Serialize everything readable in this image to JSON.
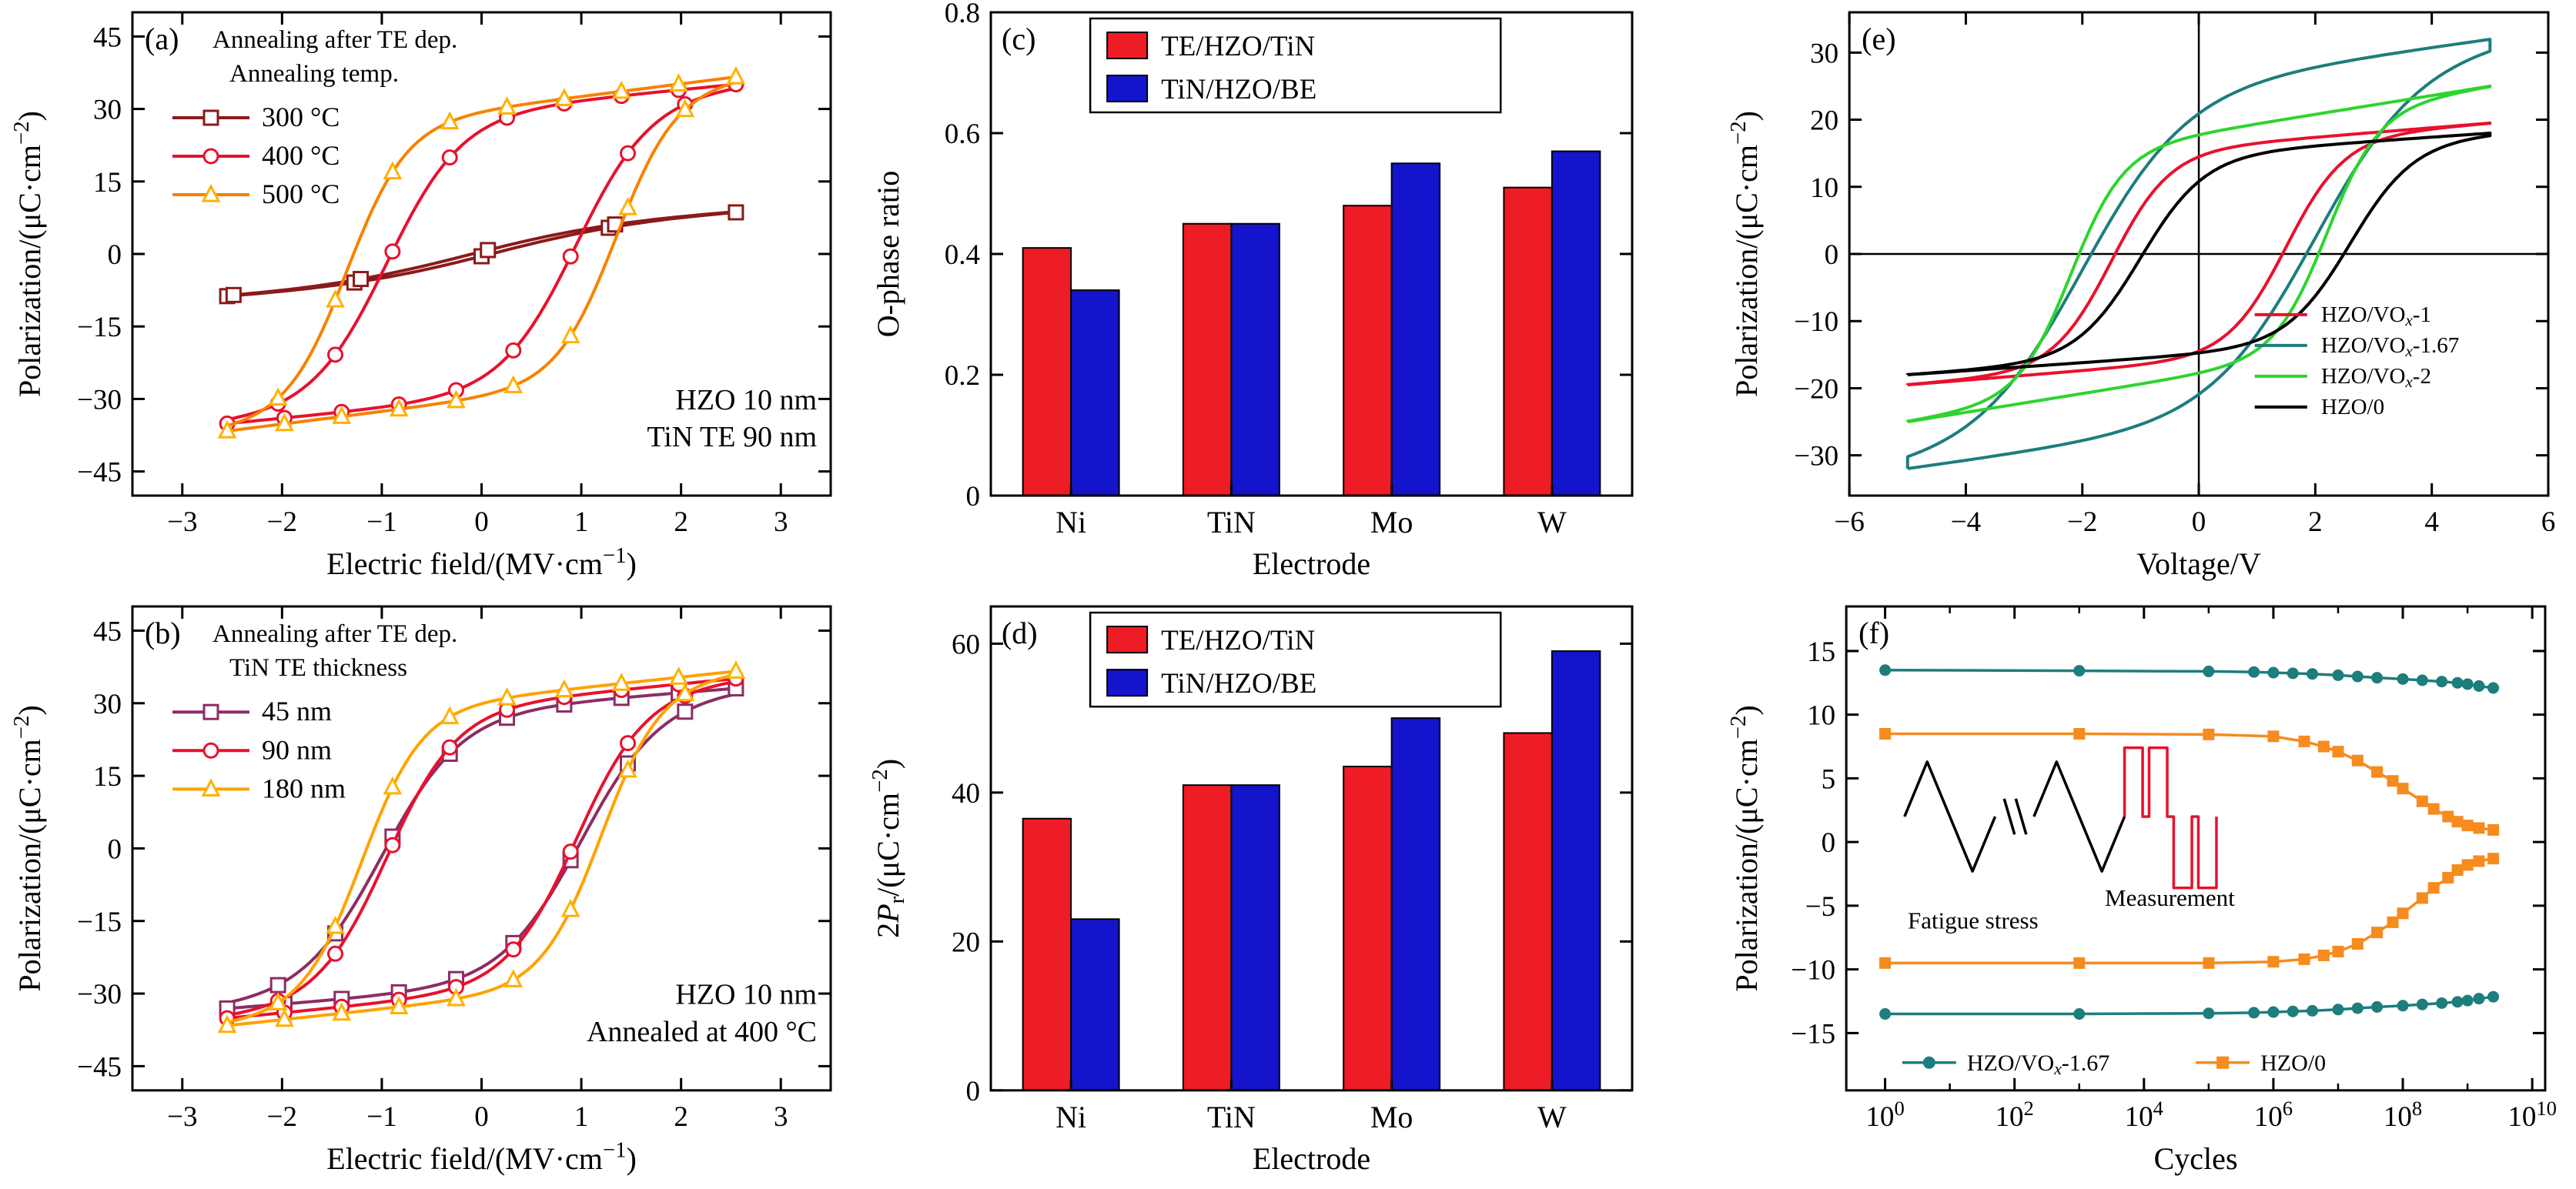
{
  "figure": {
    "background": "#ffffff",
    "panel_labels": [
      "(a)",
      "(b)",
      "(c)",
      "(d)",
      "(e)",
      "(f)"
    ]
  },
  "chart_data": [
    {
      "id": "a",
      "panel_label": "(a)",
      "type": "line",
      "subtype": "hysteresis",
      "xlabel": "Electric field/(MV·cm^{−1})",
      "ylabel": "Polarization/(μC·cm^{−2})",
      "xlim": [
        -3.5,
        3.5
      ],
      "ylim": [
        -50,
        50
      ],
      "xticks": [
        -3,
        -2,
        -1,
        0,
        1,
        2,
        3
      ],
      "yticks": [
        -45,
        -30,
        -15,
        0,
        15,
        30,
        45
      ],
      "legend_header": [
        "Annealing after TE dep.",
        "Annealing temp."
      ],
      "annotations": [
        "HZO 10 nm",
        "TiN TE 90 nm"
      ],
      "series": [
        {
          "name": "300 °C",
          "color": "#8b1a1a",
          "marker": "square",
          "marker_every": 20,
          "loop": {
            "Ps": 6,
            "w": 1.5,
            "Ec": 0.12,
            "k": 1.2,
            "Emax": 2.55
          }
        },
        {
          "name": "400 °C",
          "color": "#e8112d",
          "marker": "circle",
          "marker_every": 9,
          "loop": {
            "Ps": 30,
            "w": 0.75,
            "Ec": 0.95,
            "k": 2.0,
            "Emax": 2.55
          }
        },
        {
          "name": "500 °C",
          "color": "#f78200",
          "marker": "triangle",
          "marker_color": "#ffb100",
          "marker_every": 9,
          "loop": {
            "Ps": 30,
            "w": 0.6,
            "Ec": 1.35,
            "k": 2.6,
            "Emax": 2.55
          }
        }
      ]
    },
    {
      "id": "b",
      "panel_label": "(b)",
      "type": "line",
      "subtype": "hysteresis",
      "xlabel": "Electric field/(MV·cm^{−1})",
      "ylabel": "Polarization/(μC·cm^{−2})",
      "xlim": [
        -3.5,
        3.5
      ],
      "ylim": [
        -50,
        50
      ],
      "xticks": [
        -3,
        -2,
        -1,
        0,
        1,
        2,
        3
      ],
      "yticks": [
        -45,
        -30,
        -15,
        0,
        15,
        30,
        45
      ],
      "legend_header": [
        "Annealing after TE dep.",
        "TiN TE thickness"
      ],
      "annotations": [
        "HZO 10 nm",
        "Annealed at 400 °C"
      ],
      "series": [
        {
          "name": "45 nm",
          "color": "#8c2d64",
          "marker": "square",
          "marker_every": 9,
          "loop": {
            "Ps": 29,
            "w": 0.8,
            "Ec": 1.0,
            "k": 1.6,
            "Emax": 2.55
          }
        },
        {
          "name": "90 nm",
          "color": "#e8112d",
          "marker": "circle",
          "marker_every": 9,
          "loop": {
            "Ps": 30,
            "w": 0.7,
            "Ec": 0.95,
            "k": 2.0,
            "Emax": 2.55
          }
        },
        {
          "name": "180 nm",
          "color": "#ffa200",
          "marker": "triangle",
          "marker_color": "#ffb100",
          "marker_every": 9,
          "loop": {
            "Ps": 31,
            "w": 0.6,
            "Ec": 1.2,
            "k": 2.2,
            "Emax": 2.55
          }
        }
      ]
    },
    {
      "id": "c",
      "panel_label": "(c)",
      "type": "bar",
      "xlabel": "Electrode",
      "ylabel": "O-phase ratio",
      "categories": [
        "Ni",
        "TiN",
        "Mo",
        "W"
      ],
      "ylim": [
        0,
        0.8
      ],
      "yticks": [
        0,
        0.2,
        0.4,
        0.6,
        0.8
      ],
      "series": [
        {
          "name": "TE/HZO/TiN",
          "color": "#ee1c25",
          "values": [
            0.41,
            0.45,
            0.48,
            0.51
          ]
        },
        {
          "name": "TiN/HZO/BE",
          "color": "#1414cc",
          "values": [
            0.34,
            0.45,
            0.55,
            0.57
          ]
        }
      ]
    },
    {
      "id": "d",
      "panel_label": "(d)",
      "type": "bar",
      "xlabel": "Electrode",
      "ylabel": "2*P*_{r}/(μC·cm^{−2})",
      "categories": [
        "Ni",
        "TiN",
        "Mo",
        "W"
      ],
      "ylim": [
        0,
        65
      ],
      "yticks": [
        0,
        20,
        40,
        60
      ],
      "series": [
        {
          "name": "TE/HZO/TiN",
          "color": "#ee1c25",
          "values": [
            36.5,
            41,
            43.5,
            48
          ]
        },
        {
          "name": "TiN/HZO/BE",
          "color": "#1414cc",
          "values": [
            23,
            41,
            50,
            59
          ]
        }
      ]
    },
    {
      "id": "e",
      "panel_label": "(e)",
      "type": "line",
      "subtype": "hysteresis",
      "zero_lines": true,
      "xlabel": "Voltage/V",
      "ylabel": "Polarization/(μC·cm^{−2})",
      "xlim": [
        -6,
        6
      ],
      "ylim": [
        -36,
        36
      ],
      "xticks": [
        -6,
        -4,
        -2,
        0,
        2,
        4,
        6
      ],
      "yticks": [
        -30,
        -20,
        -10,
        0,
        10,
        20,
        30
      ],
      "series": [
        {
          "name": "HZO/VO_{*x*}-1",
          "color": "#e8112d",
          "loop": {
            "Ps": 16,
            "w": 1.0,
            "Ec": 1.5,
            "k": 0.7,
            "Emax": 5
          }
        },
        {
          "name": "HZO/VO_{*x*}-1.67",
          "color": "#1e7d7d",
          "loop": {
            "Ps": 26,
            "w": 1.8,
            "Ec": 2.0,
            "k": 1.2,
            "Emax": 5
          }
        },
        {
          "name": "HZO/VO_{*x*}-2",
          "color": "#2dd42d",
          "loop": {
            "Ps": 18,
            "w": 0.9,
            "Ec": 2.2,
            "k": 1.4,
            "Emax": 5
          }
        },
        {
          "name": "HZO/0",
          "color": "#000000",
          "loop": {
            "Ps": 15,
            "w": 1.1,
            "Ecn": 1.0,
            "Ecp": 2.6,
            "k": 0.6,
            "Emax": 5
          }
        }
      ]
    },
    {
      "id": "f",
      "panel_label": "(f)",
      "type": "fatigue",
      "xlabel": "Cycles",
      "ylabel": "Polarization/(μC·cm^{−2})",
      "xlog": true,
      "xlim_exp": [
        -0.6,
        10.2
      ],
      "xticks_exp": [
        0,
        2,
        4,
        6,
        8,
        10
      ],
      "xtick_labels": [
        "10^{0}",
        "10^{2}",
        "10^{4}",
        "10^{6}",
        "10^{8}",
        "10^{10}"
      ],
      "ylim": [
        -19.5,
        18.5
      ],
      "yticks": [
        -15,
        -10,
        -5,
        0,
        5,
        10,
        15
      ],
      "inset": {
        "fatigue_label": "Fatigue stress",
        "measurement_label": "Measurement",
        "fatigue_color": "#000000",
        "measurement_color": "#e8112d"
      },
      "series": [
        {
          "name": "HZO/VO_{*x*}-1.67",
          "color": "#1e7d7d",
          "marker": "circle",
          "branches": [
            {
              "x": [
                1,
                1000,
                100000,
                500000,
                1000000,
                2000000,
                4000000,
                10000000,
                20000000,
                40000000,
                100000000,
                200000000,
                400000000,
                700000000,
                1000000000,
                1500000000,
                2500000000
              ],
              "y": [
                13.5,
                13.45,
                13.4,
                13.35,
                13.3,
                13.25,
                13.2,
                13.1,
                13.0,
                12.9,
                12.8,
                12.7,
                12.6,
                12.5,
                12.4,
                12.25,
                12.1
              ]
            },
            {
              "x": [
                1,
                1000,
                100000,
                500000,
                1000000,
                2000000,
                4000000,
                10000000,
                20000000,
                40000000,
                100000000,
                200000000,
                400000000,
                700000000,
                1000000000,
                1500000000,
                2500000000
              ],
              "y": [
                -13.5,
                -13.5,
                -13.45,
                -13.4,
                -13.35,
                -13.3,
                -13.25,
                -13.15,
                -13.05,
                -12.95,
                -12.85,
                -12.75,
                -12.65,
                -12.55,
                -12.45,
                -12.3,
                -12.15
              ]
            }
          ]
        },
        {
          "name": "HZO/0",
          "color": "#f68b1f",
          "marker": "square",
          "branches": [
            {
              "x": [
                1,
                1000,
                100000,
                1000000,
                3000000,
                6000000,
                10000000,
                20000000,
                40000000,
                70000000,
                100000000,
                200000000,
                300000000,
                500000000,
                700000000,
                1000000000,
                1500000000,
                2500000000
              ],
              "y": [
                8.5,
                8.5,
                8.45,
                8.3,
                7.9,
                7.5,
                7.1,
                6.4,
                5.5,
                4.8,
                4.2,
                3.2,
                2.6,
                2.0,
                1.6,
                1.3,
                1.1,
                0.95
              ]
            },
            {
              "x": [
                1,
                1000,
                100000,
                1000000,
                3000000,
                6000000,
                10000000,
                20000000,
                40000000,
                70000000,
                100000000,
                200000000,
                300000000,
                500000000,
                700000000,
                1000000000,
                1500000000,
                2500000000
              ],
              "y": [
                -9.5,
                -9.5,
                -9.5,
                -9.4,
                -9.2,
                -8.9,
                -8.6,
                -8.0,
                -7.1,
                -6.3,
                -5.6,
                -4.4,
                -3.6,
                -2.8,
                -2.2,
                -1.8,
                -1.5,
                -1.3
              ]
            }
          ]
        }
      ]
    }
  ]
}
